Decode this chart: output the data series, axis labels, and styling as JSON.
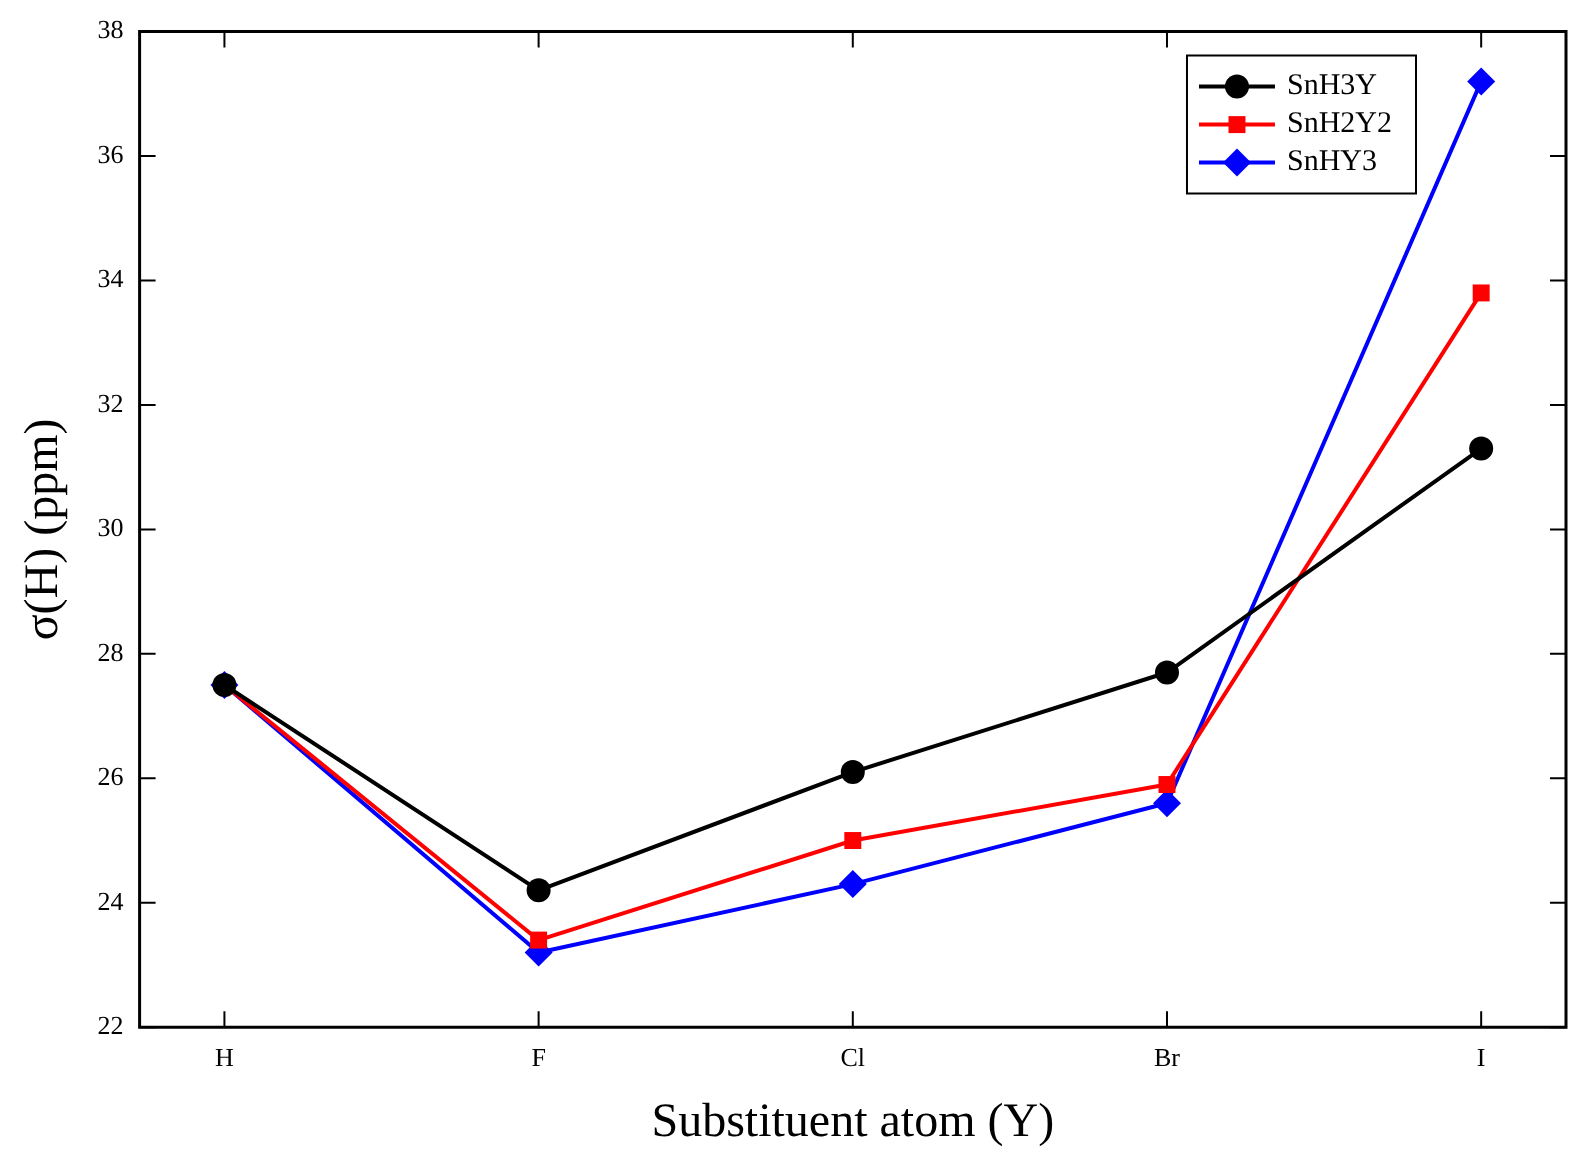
{
  "chart_data": {
    "type": "line",
    "xlabel": "Substituent atom (Y)",
    "ylabel": "σ(H) (ppm)",
    "categories": [
      "H",
      "F",
      "Cl",
      "Br",
      "I"
    ],
    "ylim": [
      22,
      38
    ],
    "yticks": [
      22,
      24,
      26,
      28,
      30,
      32,
      34,
      36,
      38
    ],
    "grid": false,
    "legend": "top right",
    "series": [
      {
        "name": "SnH3Y",
        "color": "#000000",
        "marker": "circle",
        "values": [
          27.5,
          24.2,
          26.1,
          27.7,
          31.3
        ]
      },
      {
        "name": "SnH2Y2",
        "color": "#ff0000",
        "marker": "square",
        "values": [
          27.5,
          23.4,
          25.0,
          25.9,
          33.8
        ]
      },
      {
        "name": "SnHY3",
        "color": "#0000ff",
        "marker": "diamond",
        "values": [
          27.5,
          23.2,
          24.3,
          25.6,
          37.2
        ]
      }
    ]
  }
}
